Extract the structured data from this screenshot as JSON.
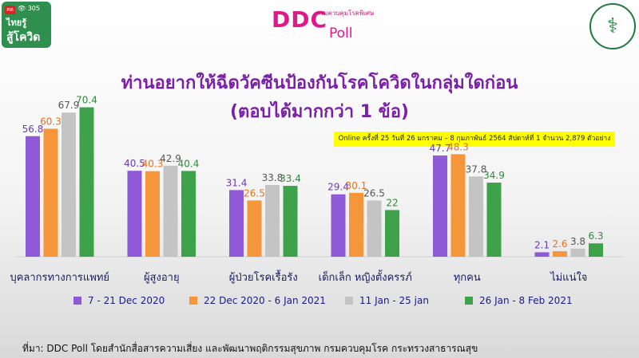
{
  "header": {
    "badge": {
      "live": "สด",
      "views": "👁 305",
      "line1": "ไทยรู้",
      "line2": "สู้โควิด"
    },
    "logo": {
      "big": "DDC",
      "small": "กรมควบคุมโรคพิเศษ",
      "poll": "Poll"
    },
    "seal_icon": "ministry-of-public-health-seal"
  },
  "chart_data": {
    "type": "bar",
    "title": "ท่านอยากให้ฉีดวัคซีนป้องกันโรคโควิดในกลุ่มใดก่อน",
    "subtitle": "(ตอบได้มากกว่า 1 ข้อ)",
    "note": "Online ครั้งที่ 25 วันที่ 26 มกราคม – 8 กุมภาพันธ์ 2564 สัปดาห์ที่ 1 จำนวน 2,879 ตัวอย่าง",
    "categories": [
      "บุคลากรทางการแพทย์",
      "ผู้สูงอายุ",
      "ผู้ป่วยโรคเรื้อรัง",
      "เด็กเล็ก หญิงตั้งครรภ์",
      "ทุกคน",
      "ไม่แน่ใจ"
    ],
    "series": [
      {
        "name": "7 - 21 Dec 2020",
        "color": "#8e5ad8",
        "label_color": "#6a3ab8",
        "values": [
          56.8,
          40.5,
          31.4,
          29.4,
          47.7,
          2.1
        ]
      },
      {
        "name": "22 Dec 2020 - 6 Jan 2021",
        "color": "#f5963a",
        "label_color": "#e0731f",
        "values": [
          60.3,
          40.3,
          26.5,
          30.1,
          48.3,
          2.6
        ]
      },
      {
        "name": "11 Jan - 25 jan",
        "color": "#c4c4c4",
        "label_color": "#555555",
        "values": [
          67.9,
          42.9,
          33.8,
          26.5,
          37.8,
          3.8
        ]
      },
      {
        "name": "26 Jan - 8 Feb 2021",
        "color": "#3da24a",
        "label_color": "#2e8a3a",
        "values": [
          70.4,
          40.4,
          33.4,
          22,
          34.9,
          6.3
        ]
      }
    ],
    "ylim": [
      0,
      80
    ],
    "grid": false,
    "legend_position": "bottom"
  },
  "source": "ที่มา: DDC Poll โดยสำนักสื่อสารความเสี่ยง และพัฒนาพฤติกรรมสุขภาพ กรมควบคุมโรค กระทรวงสาธารณสุข"
}
